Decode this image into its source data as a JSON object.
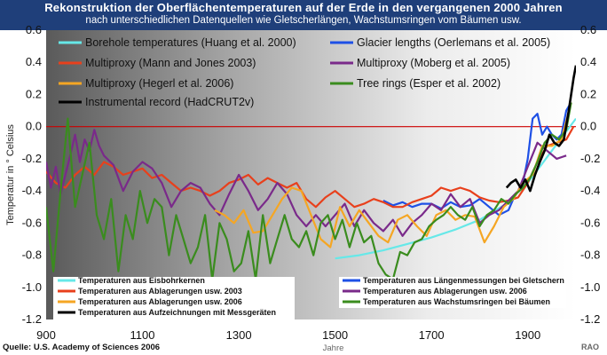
{
  "page": {
    "title": "Rekonstruktion der Oberflächentemperaturen auf der Erde in den vergangenen 2000 Jahren",
    "subtitle": "nach unterschiedlichen Datenquellen wie Gletscherlängen, Wachstumsringen vom Bäumen usw.",
    "source": "Quelle: U.S. Academy of Sciences 2006",
    "credit": "RAO",
    "colors": {
      "title_band": "#1f3f7a",
      "zero_line": "#cc0000"
    }
  },
  "chart_data": {
    "type": "line",
    "ylabel": "Temperatur in ° Celsius",
    "xlabel_sub": "Jahre",
    "xlim": [
      900,
      2000
    ],
    "ylim": [
      -1.2,
      0.6
    ],
    "x_ticks": [
      "900",
      "1100",
      "1300",
      "1500",
      "1700",
      "1900"
    ],
    "x_tick_values": [
      900,
      1100,
      1300,
      1500,
      1700,
      1900
    ],
    "y_ticks_left": [
      "0.6",
      "0.4",
      "0.2",
      "0.0",
      "-0.2",
      "-0.4",
      "-0.6",
      "-0.8",
      "-1.0",
      "-1.2"
    ],
    "y_ticks_right": [
      "0.6",
      "0.4",
      "0.2",
      "0.0",
      "-0.2",
      "-0.4",
      "-0.6",
      "-0.8",
      "-1.0",
      "-1.2"
    ],
    "y_tick_values": [
      0.6,
      0.4,
      0.2,
      0.0,
      -0.2,
      -0.4,
      -0.6,
      -0.8,
      -1.0,
      -1.2
    ],
    "zero_line": 0.0,
    "background": "gradient dark-gray (left) to white (right)",
    "legend_top": [
      "Borehole temperatures (Huang et al. 2000)",
      "Glacier lengths (Oerlemans et al. 2005)",
      "Multiproxy (Mann and Jones 2003)",
      "Multiproxy (Moberg et al. 2005)",
      "Multiproxy (Hegerl et al. 2006)",
      "Tree rings (Esper et al. 2002)",
      "Instrumental record (HadCRUT2v)"
    ],
    "legend_bottom": [
      "Temperaturen aus Eisbohrkernen",
      "Temperaturen aus Längenmessungen bei Gletschern",
      "Temperaturen aus Ablagerungen usw. 2003",
      "Temperaturen aus Ablagerungen usw. 2006",
      "Temperaturen aus Ablagerungen usw. 2006",
      "Temperaturen aus Wachstumsringen bei Bäumen",
      "Temperaturen  aus Aufzeichnungen mit Messgeräten"
    ],
    "series": [
      {
        "name": "Borehole temperatures (Huang et al. 2000)",
        "color": "#66e8e8",
        "x": [
          1500,
          1550,
          1600,
          1650,
          1700,
          1750,
          1800,
          1850,
          1900,
          1950,
          2000
        ],
        "y": [
          -0.82,
          -0.8,
          -0.77,
          -0.73,
          -0.69,
          -0.64,
          -0.58,
          -0.49,
          -0.35,
          -0.15,
          0.05
        ]
      },
      {
        "name": "Glacier lengths (Oerlemans et al. 2005)",
        "color": "#1e50e6",
        "x": [
          1600,
          1620,
          1640,
          1660,
          1680,
          1700,
          1720,
          1740,
          1760,
          1780,
          1800,
          1820,
          1840,
          1860,
          1870,
          1880,
          1890,
          1900,
          1910,
          1920,
          1930,
          1940,
          1950,
          1960,
          1970,
          1980,
          1990
        ],
        "y": [
          -0.46,
          -0.49,
          -0.47,
          -0.5,
          -0.48,
          -0.48,
          -0.51,
          -0.47,
          -0.5,
          -0.49,
          -0.45,
          -0.5,
          -0.55,
          -0.52,
          -0.45,
          -0.4,
          -0.35,
          -0.2,
          0.05,
          0.08,
          -0.05,
          0.0,
          -0.05,
          -0.08,
          -0.05,
          0.1,
          0.15
        ]
      },
      {
        "name": "Multiproxy (Mann and Jones 2003)",
        "color": "#e8401c",
        "x": [
          900,
          920,
          940,
          960,
          980,
          1000,
          1020,
          1040,
          1060,
          1080,
          1100,
          1120,
          1140,
          1160,
          1180,
          1200,
          1220,
          1240,
          1260,
          1280,
          1300,
          1320,
          1340,
          1360,
          1380,
          1400,
          1420,
          1440,
          1460,
          1480,
          1500,
          1520,
          1540,
          1560,
          1580,
          1600,
          1620,
          1640,
          1660,
          1680,
          1700,
          1720,
          1740,
          1760,
          1780,
          1800,
          1820,
          1840,
          1860,
          1880,
          1900,
          1920,
          1940,
          1960,
          1980,
          1995
        ],
        "y": [
          -0.28,
          -0.35,
          -0.38,
          -0.3,
          -0.25,
          -0.3,
          -0.22,
          -0.25,
          -0.3,
          -0.28,
          -0.26,
          -0.32,
          -0.3,
          -0.35,
          -0.4,
          -0.38,
          -0.4,
          -0.43,
          -0.4,
          -0.35,
          -0.33,
          -0.3,
          -0.36,
          -0.32,
          -0.35,
          -0.38,
          -0.35,
          -0.45,
          -0.5,
          -0.44,
          -0.4,
          -0.45,
          -0.5,
          -0.48,
          -0.45,
          -0.47,
          -0.5,
          -0.5,
          -0.47,
          -0.45,
          -0.43,
          -0.38,
          -0.4,
          -0.38,
          -0.4,
          -0.44,
          -0.46,
          -0.47,
          -0.46,
          -0.44,
          -0.35,
          -0.22,
          -0.12,
          -0.1,
          -0.08,
          0.0
        ]
      },
      {
        "name": "Multiproxy (Moberg et al. 2005)",
        "color": "#7a2a8a",
        "x": [
          900,
          910,
          920,
          930,
          940,
          950,
          960,
          970,
          980,
          990,
          1000,
          1010,
          1020,
          1040,
          1060,
          1080,
          1100,
          1120,
          1140,
          1160,
          1180,
          1200,
          1220,
          1240,
          1260,
          1280,
          1300,
          1320,
          1340,
          1360,
          1380,
          1400,
          1420,
          1440,
          1460,
          1480,
          1500,
          1520,
          1540,
          1560,
          1580,
          1600,
          1620,
          1640,
          1660,
          1680,
          1700,
          1720,
          1740,
          1760,
          1780,
          1800,
          1820,
          1840,
          1860,
          1880,
          1900,
          1920,
          1940,
          1960,
          1980
        ],
        "y": [
          -0.22,
          -0.38,
          -0.25,
          -0.42,
          -0.3,
          -0.18,
          -0.05,
          -0.22,
          -0.08,
          -0.15,
          -0.02,
          -0.12,
          -0.18,
          -0.24,
          -0.4,
          -0.28,
          -0.22,
          -0.26,
          -0.35,
          -0.5,
          -0.4,
          -0.35,
          -0.38,
          -0.48,
          -0.55,
          -0.42,
          -0.3,
          -0.4,
          -0.52,
          -0.45,
          -0.35,
          -0.42,
          -0.55,
          -0.62,
          -0.55,
          -0.62,
          -0.55,
          -0.48,
          -0.62,
          -0.52,
          -0.6,
          -0.65,
          -0.58,
          -0.68,
          -0.6,
          -0.55,
          -0.48,
          -0.52,
          -0.42,
          -0.5,
          -0.45,
          -0.6,
          -0.55,
          -0.52,
          -0.46,
          -0.4,
          -0.25,
          -0.1,
          -0.15,
          -0.2,
          -0.18
        ]
      },
      {
        "name": "Multiproxy (Hegerl et al. 2006)",
        "color": "#f5a623",
        "x": [
          1250,
          1270,
          1290,
          1310,
          1330,
          1350,
          1370,
          1390,
          1410,
          1430,
          1450,
          1470,
          1490,
          1510,
          1530,
          1550,
          1570,
          1590,
          1610,
          1630,
          1650,
          1670,
          1690,
          1710,
          1730,
          1750,
          1770,
          1790,
          1810,
          1830,
          1850,
          1870,
          1890,
          1910,
          1930,
          1950,
          1970,
          1990
        ],
        "y": [
          -0.52,
          -0.55,
          -0.6,
          -0.52,
          -0.66,
          -0.65,
          -0.55,
          -0.45,
          -0.38,
          -0.4,
          -0.55,
          -0.7,
          -0.75,
          -0.5,
          -0.62,
          -0.52,
          -0.6,
          -0.68,
          -0.72,
          -0.58,
          -0.55,
          -0.62,
          -0.68,
          -0.55,
          -0.52,
          -0.58,
          -0.55,
          -0.56,
          -0.72,
          -0.62,
          -0.5,
          -0.45,
          -0.35,
          -0.3,
          -0.12,
          -0.12,
          -0.08,
          0.15
        ]
      },
      {
        "name": "Tree rings (Esper et al. 2002)",
        "color": "#3a8c1e",
        "x": [
          900,
          915,
          930,
          945,
          960,
          975,
          990,
          1005,
          1020,
          1035,
          1050,
          1065,
          1080,
          1095,
          1110,
          1125,
          1140,
          1155,
          1170,
          1185,
          1200,
          1215,
          1230,
          1245,
          1260,
          1275,
          1290,
          1305,
          1320,
          1335,
          1350,
          1365,
          1380,
          1395,
          1410,
          1425,
          1440,
          1455,
          1470,
          1485,
          1500,
          1515,
          1530,
          1545,
          1560,
          1575,
          1590,
          1605,
          1620,
          1635,
          1650,
          1665,
          1680,
          1695,
          1710,
          1725,
          1740,
          1755,
          1770,
          1785,
          1800,
          1815,
          1830,
          1845,
          1860,
          1875,
          1890,
          1905,
          1920,
          1935,
          1950,
          1965,
          1980,
          1990
        ],
        "y": [
          -0.5,
          -0.9,
          -0.4,
          0.05,
          -0.5,
          -0.3,
          -0.1,
          -0.55,
          -0.7,
          -0.45,
          -0.9,
          -0.55,
          -0.7,
          -0.4,
          -0.6,
          -0.45,
          -0.5,
          -0.8,
          -0.55,
          -0.7,
          -0.85,
          -0.75,
          -0.55,
          -0.95,
          -0.6,
          -0.7,
          -0.9,
          -0.85,
          -0.65,
          -0.95,
          -0.55,
          -0.85,
          -0.7,
          -0.55,
          -0.7,
          -0.75,
          -0.65,
          -0.8,
          -0.6,
          -0.55,
          -0.7,
          -0.58,
          -0.75,
          -0.6,
          -0.72,
          -0.68,
          -0.85,
          -0.92,
          -0.95,
          -0.78,
          -0.8,
          -0.72,
          -0.7,
          -0.62,
          -0.58,
          -0.55,
          -0.5,
          -0.55,
          -0.58,
          -0.5,
          -0.62,
          -0.55,
          -0.52,
          -0.45,
          -0.48,
          -0.42,
          -0.38,
          -0.32,
          -0.22,
          -0.1,
          -0.05,
          -0.08,
          -0.02,
          0.15
        ]
      },
      {
        "name": "Instrumental record (HadCRUT2v)",
        "color": "#000000",
        "x": [
          1856,
          1865,
          1875,
          1885,
          1895,
          1905,
          1915,
          1925,
          1935,
          1945,
          1955,
          1965,
          1975,
          1985,
          1995,
          2000
        ],
        "y": [
          -0.38,
          -0.35,
          -0.33,
          -0.38,
          -0.33,
          -0.4,
          -0.3,
          -0.22,
          -0.15,
          -0.05,
          -0.1,
          -0.12,
          -0.08,
          0.1,
          0.3,
          0.38
        ]
      }
    ]
  }
}
